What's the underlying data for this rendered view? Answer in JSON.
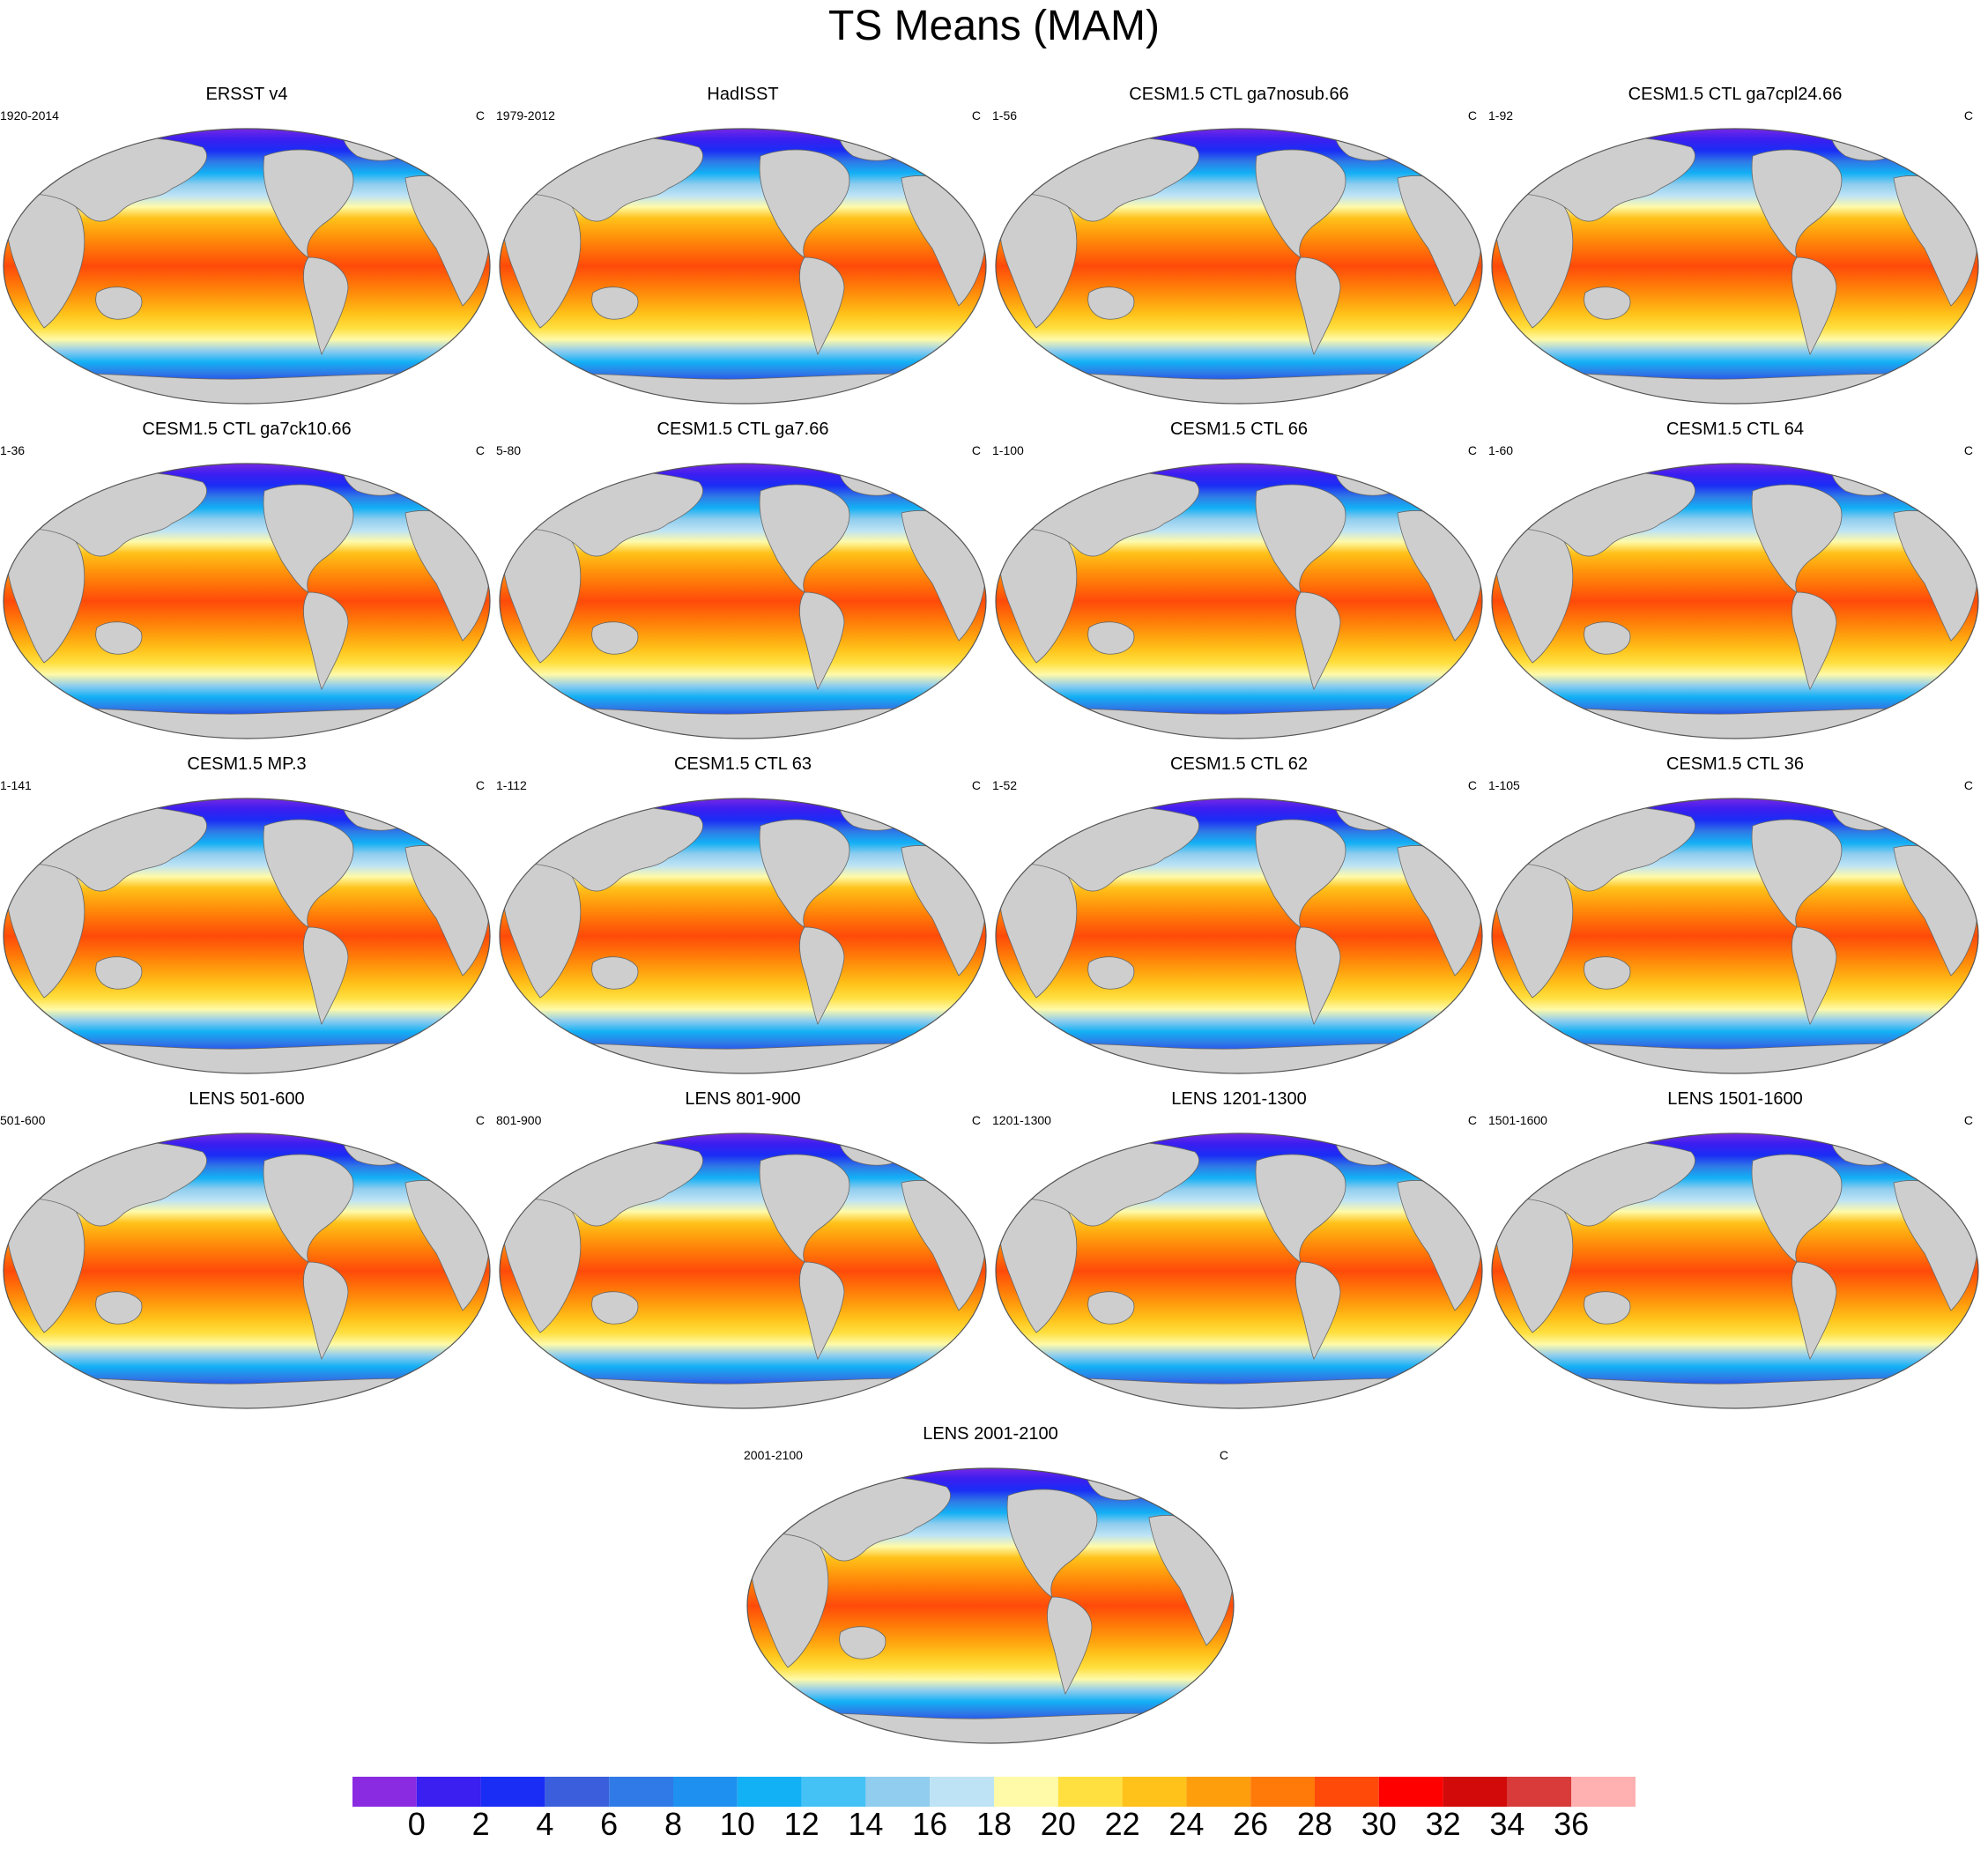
{
  "title": "TS Means (MAM)",
  "units": "C",
  "land_color": "#cecece",
  "panels": [
    {
      "name": "ERSST v4",
      "years": "1920-2014"
    },
    {
      "name": "HadISST",
      "years": "1979-2012"
    },
    {
      "name": "CESM1.5 CTL ga7nosub.66",
      "years": "1-56"
    },
    {
      "name": "CESM1.5 CTL ga7cpl24.66",
      "years": "1-92"
    },
    {
      "name": "CESM1.5 CTL ga7ck10.66",
      "years": "1-36"
    },
    {
      "name": "CESM1.5 CTL ga7.66",
      "years": "5-80"
    },
    {
      "name": "CESM1.5 CTL 66",
      "years": "1-100"
    },
    {
      "name": "CESM1.5 CTL 64",
      "years": "1-60"
    },
    {
      "name": "CESM1.5 MP.3",
      "years": "1-141"
    },
    {
      "name": "CESM1.5 CTL 63",
      "years": "1-112"
    },
    {
      "name": "CESM1.5 CTL 62",
      "years": "1-52"
    },
    {
      "name": "CESM1.5 CTL 36",
      "years": "1-105"
    },
    {
      "name": "LENS 501-600",
      "years": "501-600"
    },
    {
      "name": "LENS 801-900",
      "years": "801-900"
    },
    {
      "name": "LENS 1201-1300",
      "years": "1201-1300"
    },
    {
      "name": "LENS 1501-1600",
      "years": "1501-1600"
    },
    {
      "name": "LENS 2001-2100",
      "years": "2001-2100"
    }
  ],
  "colorbar": {
    "colors": [
      "#8a2be2",
      "#3b1ef0",
      "#1a2df5",
      "#3b5fdc",
      "#2f7ae6",
      "#1e90f0",
      "#12b0f5",
      "#45c2f5",
      "#90cdee",
      "#bde3f5",
      "#fffaa8",
      "#ffe040",
      "#ffc21a",
      "#ff9e0d",
      "#ff7a08",
      "#ff4a0a",
      "#ff0000",
      "#d20a0a",
      "#d93a3a",
      "#ffb0b0"
    ],
    "labels": [
      "0",
      "2",
      "4",
      "6",
      "8",
      "10",
      "12",
      "14",
      "16",
      "18",
      "20",
      "22",
      "24",
      "26",
      "28",
      "30",
      "32",
      "34",
      "36"
    ]
  }
}
